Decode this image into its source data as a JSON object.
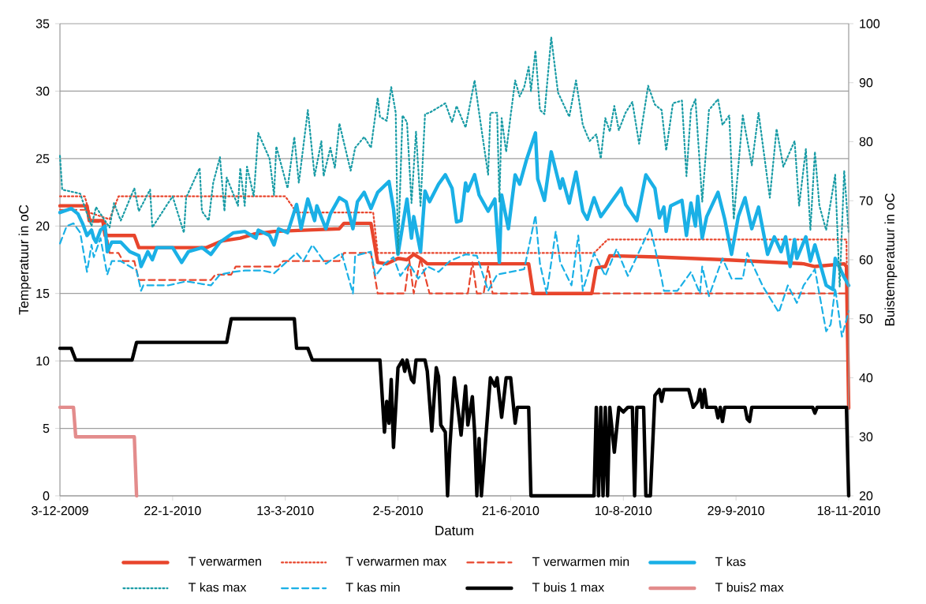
{
  "chart_data": {
    "type": "line",
    "xlabel": "Datum",
    "ylabel": "Temperatuur in oC",
    "y2label": "Buistemperatuur in oC",
    "xlim": [
      "2009-12-03",
      "2010-11-18"
    ],
    "xticks": [
      {
        "value": "2009-12-03",
        "label": "3-12-2009"
      },
      {
        "value": "2010-01-22",
        "label": "22-1-2010"
      },
      {
        "value": "2010-03-13",
        "label": "13-3-2010"
      },
      {
        "value": "2010-05-02",
        "label": "2-5-2010"
      },
      {
        "value": "2010-06-21",
        "label": "21-6-2010"
      },
      {
        "value": "2010-08-10",
        "label": "10-8-2010"
      },
      {
        "value": "2010-09-29",
        "label": "29-9-2010"
      },
      {
        "value": "2010-11-18",
        "label": "18-11-2010"
      }
    ],
    "ylim": [
      0,
      35
    ],
    "yticks": [
      0,
      5,
      10,
      15,
      20,
      25,
      30,
      35
    ],
    "y2lim": [
      20,
      100
    ],
    "y2ticks": [
      20,
      30,
      40,
      50,
      60,
      70,
      80,
      90,
      100
    ],
    "grid": "y",
    "legend": "bottom",
    "series": [
      {
        "name": "T verwarmen",
        "color": "#e8452c",
        "line_style": "solid",
        "x": [
          "2009-12-03",
          "2009-12-15",
          "2009-12-16",
          "2009-12-22",
          "2009-12-23",
          "2010-01-05",
          "2010-01-07",
          "2010-02-06",
          "2010-02-13",
          "2010-02-17",
          "2010-02-21",
          "2010-02-27",
          "2010-03-08",
          "2010-03-23",
          "2010-04-06",
          "2010-04-08",
          "2010-04-20",
          "2010-04-23",
          "2010-04-27",
          "2010-05-02",
          "2010-05-06",
          "2010-05-09",
          "2010-05-12",
          "2010-05-15",
          "2010-06-29",
          "2010-07-01",
          "2010-07-27",
          "2010-07-29",
          "2010-08-02",
          "2010-08-04",
          "2010-08-25",
          "2010-09-24",
          "2010-10-29",
          "2010-11-03",
          "2010-11-16",
          "2010-11-17",
          "2010-11-18"
        ],
        "values": [
          21.5,
          21.5,
          20.4,
          20.4,
          19.3,
          19.3,
          18.4,
          18.4,
          18.9,
          19.0,
          19.1,
          19.4,
          19.6,
          19.7,
          19.8,
          20.2,
          20.2,
          17.3,
          17.2,
          17.6,
          17.5,
          17.9,
          17.6,
          17.2,
          17.2,
          15.0,
          15.0,
          16.9,
          17.0,
          17.8,
          17.7,
          17.5,
          17.2,
          17.0,
          17.2,
          17.0,
          6.5
        ]
      },
      {
        "name": "T verwarmen max",
        "color": "#e8452c",
        "line_style": "dotted",
        "x": [
          "2009-12-03",
          "2009-12-14",
          "2009-12-16",
          "2009-12-25",
          "2009-12-29",
          "2010-03-13",
          "2010-03-18",
          "2010-04-21",
          "2010-04-23",
          "2010-07-28",
          "2010-08-03",
          "2010-11-17",
          "2010-11-18"
        ],
        "values": [
          22.2,
          22.2,
          21.0,
          20.5,
          22.2,
          22.2,
          21.0,
          21.0,
          18.0,
          18.0,
          19.0,
          19.0,
          6.5
        ]
      },
      {
        "name": "T verwarmen min",
        "color": "#e8452c",
        "line_style": "dashed",
        "x": [
          "2009-12-03",
          "2009-12-15",
          "2009-12-17",
          "2009-12-23",
          "2009-12-25",
          "2009-12-29",
          "2009-12-31",
          "2010-01-05",
          "2010-01-07",
          "2010-02-08",
          "2010-02-10",
          "2010-02-17",
          "2010-02-19",
          "2010-03-10",
          "2010-03-12",
          "2010-04-06",
          "2010-04-08",
          "2010-04-20",
          "2010-04-23",
          "2010-05-05",
          "2010-05-07",
          "2010-05-09",
          "2010-05-12",
          "2010-05-16",
          "2010-06-02",
          "2010-06-04",
          "2010-06-06",
          "2010-06-09",
          "2010-06-11",
          "2010-06-13",
          "2010-11-17",
          "2010-11-18"
        ],
        "values": [
          21.2,
          21.2,
          20.3,
          20.3,
          18.0,
          18.0,
          17.4,
          17.4,
          16.0,
          16.0,
          16.4,
          16.4,
          17.0,
          17.0,
          17.4,
          17.4,
          18.0,
          18.0,
          15.0,
          15.0,
          17.5,
          15.0,
          17.6,
          15.0,
          15.0,
          17.3,
          15.0,
          15.0,
          17.0,
          15.0,
          15.0,
          6.5
        ]
      },
      {
        "name": "T kas",
        "color": "#1ab0e6",
        "line_style": "solid",
        "x": [
          "2009-12-03",
          "2009-12-08",
          "2009-12-11",
          "2009-12-13",
          "2009-12-15",
          "2009-12-17",
          "2009-12-18",
          "2009-12-19",
          "2009-12-21",
          "2009-12-23",
          "2009-12-24",
          "2009-12-26",
          "2009-12-30",
          "2010-01-03",
          "2010-01-07",
          "2010-01-08",
          "2010-01-11",
          "2010-01-13",
          "2010-01-15",
          "2010-01-22",
          "2010-01-26",
          "2010-01-29",
          "2010-02-04",
          "2010-02-08",
          "2010-02-12",
          "2010-02-18",
          "2010-02-23",
          "2010-02-28",
          "2010-03-01",
          "2010-03-06",
          "2010-03-08",
          "2010-03-10",
          "2010-03-14",
          "2010-03-18",
          "2010-03-20",
          "2010-03-23",
          "2010-03-26",
          "2010-03-27",
          "2010-03-31",
          "2010-04-02",
          "2010-04-06",
          "2010-04-09",
          "2010-04-12",
          "2010-04-14",
          "2010-04-17",
          "2010-04-20",
          "2010-04-23",
          "2010-04-28",
          "2010-04-30",
          "2010-05-02",
          "2010-05-06",
          "2010-05-08",
          "2010-05-09",
          "2010-05-12",
          "2010-05-14",
          "2010-05-16",
          "2010-05-20",
          "2010-05-23",
          "2010-05-26",
          "2010-05-28",
          "2010-05-30",
          "2010-06-01",
          "2010-06-02",
          "2010-06-05",
          "2010-06-07",
          "2010-06-11",
          "2010-06-14",
          "2010-06-16",
          "2010-06-17",
          "2010-06-20",
          "2010-06-23",
          "2010-06-25",
          "2010-06-28",
          "2010-07-02",
          "2010-07-03",
          "2010-07-06",
          "2010-07-09",
          "2010-07-13",
          "2010-07-14",
          "2010-07-17",
          "2010-07-20",
          "2010-07-23",
          "2010-07-25",
          "2010-07-28",
          "2010-07-31",
          "2010-08-06",
          "2010-08-09",
          "2010-08-11",
          "2010-08-16",
          "2010-08-20",
          "2010-08-24",
          "2010-08-26",
          "2010-08-28",
          "2010-08-29",
          "2010-08-31",
          "2010-09-05",
          "2010-09-07",
          "2010-09-09",
          "2010-09-11",
          "2010-09-12",
          "2010-09-14",
          "2010-09-16",
          "2010-09-21",
          "2010-09-24",
          "2010-09-27",
          "2010-09-30",
          "2010-10-03",
          "2010-10-06",
          "2010-10-09",
          "2010-10-13",
          "2010-10-16",
          "2010-10-19",
          "2010-10-21",
          "2010-10-23",
          "2010-10-25",
          "2010-10-26",
          "2010-10-30",
          "2010-11-01",
          "2010-11-03",
          "2010-11-08",
          "2010-11-11",
          "2010-11-12",
          "2010-11-16",
          "2010-11-18"
        ],
        "values": [
          21.0,
          21.3,
          20.9,
          20.2,
          19.3,
          19.7,
          19.1,
          18.8,
          19.7,
          20.0,
          18.1,
          18.8,
          18.8,
          18.1,
          17.8,
          17.0,
          18.1,
          17.5,
          18.4,
          18.4,
          17.3,
          18.1,
          18.4,
          17.9,
          18.8,
          19.5,
          19.6,
          19.1,
          19.7,
          19.3,
          18.6,
          19.8,
          19.5,
          21.6,
          19.8,
          22.0,
          20.4,
          21.5,
          19.8,
          20.9,
          22.1,
          21.8,
          19.8,
          21.8,
          22.5,
          21.3,
          22.5,
          23.3,
          21.3,
          17.9,
          22.0,
          19.1,
          20.7,
          18.1,
          22.6,
          21.8,
          23.1,
          23.8,
          22.8,
          20.3,
          20.4,
          23.2,
          22.6,
          23.8,
          22.3,
          21.1,
          22.0,
          17.3,
          22.3,
          19.8,
          23.8,
          23.1,
          24.9,
          26.9,
          23.5,
          21.9,
          25.5,
          22.8,
          23.5,
          21.7,
          24.0,
          21.1,
          20.5,
          22.1,
          20.7,
          22.1,
          22.8,
          21.6,
          20.4,
          23.8,
          22.8,
          20.6,
          21.4,
          19.6,
          21.5,
          21.9,
          19.3,
          21.7,
          20.0,
          22.2,
          19.1,
          20.7,
          22.5,
          20.5,
          17.9,
          20.7,
          22.1,
          19.8,
          21.4,
          17.9,
          19.2,
          18.1,
          19.2,
          17.0,
          19.0,
          17.6,
          19.2,
          17.4,
          18.6,
          15.6,
          15.3,
          17.6,
          16.2,
          15.6
        ]
      },
      {
        "name": "T kas max",
        "color": "#1a9ca6",
        "line_style": "dotted",
        "x": [
          "2009-12-03",
          "2009-12-04",
          "2009-12-12",
          "2009-12-14",
          "2009-12-17",
          "2009-12-19",
          "2009-12-25",
          "2009-12-27",
          "2009-12-30",
          "2010-01-05",
          "2010-01-07",
          "2010-01-12",
          "2010-01-13",
          "2010-01-20",
          "2010-01-22",
          "2010-01-27",
          "2010-01-28",
          "2010-02-03",
          "2010-02-04",
          "2010-02-07",
          "2010-02-09",
          "2010-02-12",
          "2010-02-14",
          "2010-02-15",
          "2010-02-20",
          "2010-02-21",
          "2010-02-23",
          "2010-02-24",
          "2010-02-27",
          "2010-03-01",
          "2010-03-06",
          "2010-03-08",
          "2010-03-09",
          "2010-03-14",
          "2010-03-17",
          "2010-03-19",
          "2010-03-23",
          "2010-03-26",
          "2010-03-29",
          "2010-03-30",
          "2010-04-02",
          "2010-04-04",
          "2010-04-06",
          "2010-04-11",
          "2010-04-13",
          "2010-04-17",
          "2010-04-20",
          "2010-04-23",
          "2010-04-24",
          "2010-04-27",
          "2010-04-29",
          "2010-05-01",
          "2010-05-02",
          "2010-05-04",
          "2010-05-06",
          "2010-05-08",
          "2010-05-10",
          "2010-05-12",
          "2010-05-14",
          "2010-05-16",
          "2010-05-23",
          "2010-05-26",
          "2010-05-28",
          "2010-06-01",
          "2010-06-05",
          "2010-06-07",
          "2010-06-11",
          "2010-06-12",
          "2010-06-15",
          "2010-06-16",
          "2010-06-17",
          "2010-06-19",
          "2010-06-21",
          "2010-06-23",
          "2010-06-25",
          "2010-06-27",
          "2010-06-29",
          "2010-06-30",
          "2010-07-02",
          "2010-07-04",
          "2010-07-06",
          "2010-07-09",
          "2010-07-12",
          "2010-07-17",
          "2010-07-20",
          "2010-07-23",
          "2010-07-26",
          "2010-07-29",
          "2010-07-31",
          "2010-08-02",
          "2010-08-04",
          "2010-08-06",
          "2010-08-08",
          "2010-08-11",
          "2010-08-14",
          "2010-08-17",
          "2010-08-21",
          "2010-08-24",
          "2010-08-27",
          "2010-08-29",
          "2010-09-01",
          "2010-09-05",
          "2010-09-07",
          "2010-09-09",
          "2010-09-11",
          "2010-09-14",
          "2010-09-17",
          "2010-09-21",
          "2010-09-23",
          "2010-09-26",
          "2010-09-28",
          "2010-10-02",
          "2010-10-06",
          "2010-10-09",
          "2010-10-14",
          "2010-10-17",
          "2010-10-20",
          "2010-10-25",
          "2010-10-27",
          "2010-10-30",
          "2010-11-01",
          "2010-11-03",
          "2010-11-05",
          "2010-11-08",
          "2010-11-12",
          "2010-11-14",
          "2010-11-16",
          "2010-11-18"
        ],
        "values": [
          25.2,
          22.7,
          22.4,
          21.4,
          20.0,
          21.4,
          19.9,
          21.7,
          20.4,
          22.8,
          21.1,
          22.7,
          19.9,
          21.7,
          22.2,
          19.5,
          22.1,
          24.3,
          21.1,
          20.4,
          23.2,
          25.1,
          21.1,
          23.6,
          21.5,
          24.3,
          21.5,
          24.4,
          22.2,
          26.9,
          25.0,
          22.3,
          25.9,
          22.8,
          26.6,
          23.2,
          28.6,
          23.7,
          26.3,
          23.7,
          25.8,
          24.3,
          27.6,
          24.1,
          25.8,
          26.6,
          25.8,
          29.5,
          28.1,
          27.8,
          30.3,
          28.4,
          17.9,
          28.2,
          27.7,
          21.7,
          27.0,
          21.5,
          28.3,
          28.4,
          29.1,
          27.7,
          28.9,
          27.3,
          30.8,
          28.4,
          23.8,
          28.4,
          28.4,
          21.8,
          28.0,
          25.5,
          28.2,
          30.8,
          29.6,
          30.3,
          31.8,
          30.0,
          33.0,
          28.6,
          28.3,
          34.0,
          29.9,
          28.1,
          30.8,
          27.5,
          26.3,
          26.8,
          25.0,
          28.0,
          27.0,
          28.9,
          27.1,
          28.4,
          29.2,
          26.1,
          30.4,
          29.0,
          28.6,
          25.6,
          29.1,
          29.3,
          23.7,
          28.6,
          29.4,
          21.8,
          28.6,
          29.4,
          27.5,
          28.2,
          20.5,
          28.2,
          24.5,
          28.4,
          22.1,
          27.2,
          24.4,
          26.3,
          21.5,
          25.7,
          19.7,
          25.5,
          21.5,
          19.7,
          23.8,
          15.5,
          24.1,
          19.5
        ]
      },
      {
        "name": "T kas min",
        "color": "#1ab0e6",
        "line_style": "dashed",
        "x": [
          "2009-12-03",
          "2009-12-06",
          "2009-12-09",
          "2009-12-12",
          "2009-12-15",
          "2009-12-17",
          "2009-12-18",
          "2009-12-21",
          "2009-12-24",
          "2009-12-26",
          "2009-12-30",
          "2010-01-06",
          "2010-01-08",
          "2010-01-09",
          "2010-01-20",
          "2010-01-28",
          "2010-02-08",
          "2010-02-12",
          "2010-02-18",
          "2010-02-23",
          "2010-03-03",
          "2010-03-08",
          "2010-03-12",
          "2010-03-18",
          "2010-03-21",
          "2010-03-25",
          "2010-03-31",
          "2010-04-07",
          "2010-04-12",
          "2010-04-13",
          "2010-04-20",
          "2010-04-22",
          "2010-04-26",
          "2010-04-30",
          "2010-05-03",
          "2010-05-07",
          "2010-05-11",
          "2010-05-15",
          "2010-05-20",
          "2010-05-25",
          "2010-06-01",
          "2010-06-06",
          "2010-06-11",
          "2010-06-15",
          "2010-06-21",
          "2010-06-27",
          "2010-07-02",
          "2010-07-04",
          "2010-07-07",
          "2010-07-11",
          "2010-07-13",
          "2010-07-18",
          "2010-07-21",
          "2010-07-23",
          "2010-07-28",
          "2010-08-02",
          "2010-08-07",
          "2010-08-12",
          "2010-08-22",
          "2010-08-27",
          "2010-08-28",
          "2010-09-03",
          "2010-09-09",
          "2010-09-13",
          "2010-09-14",
          "2010-09-17",
          "2010-09-23",
          "2010-09-27",
          "2010-10-02",
          "2010-10-04",
          "2010-10-11",
          "2010-10-18",
          "2010-10-22",
          "2010-10-26",
          "2010-10-29",
          "2010-11-03",
          "2010-11-08",
          "2010-11-10",
          "2010-11-12",
          "2010-11-15",
          "2010-11-18"
        ],
        "values": [
          18.7,
          20.0,
          20.2,
          19.5,
          16.6,
          18.6,
          17.7,
          19.1,
          16.4,
          17.4,
          17.4,
          16.7,
          15.2,
          15.6,
          15.6,
          15.9,
          15.6,
          16.4,
          16.6,
          16.7,
          16.7,
          16.5,
          17.1,
          18.0,
          17.4,
          18.6,
          17.2,
          18.0,
          15.0,
          17.8,
          18.1,
          16.3,
          17.2,
          17.7,
          16.3,
          17.2,
          16.1,
          17.0,
          16.6,
          17.4,
          17.9,
          17.8,
          15.2,
          16.4,
          16.6,
          16.8,
          20.8,
          17.2,
          15.0,
          19.6,
          17.3,
          15.6,
          19.3,
          15.2,
          18.0,
          16.3,
          18.3,
          16.3,
          19.9,
          16.1,
          15.2,
          15.2,
          16.6,
          15.0,
          17.0,
          14.8,
          17.6,
          16.1,
          16.1,
          18.0,
          15.5,
          13.6,
          15.6,
          14.3,
          15.6,
          16.8,
          12.2,
          12.7,
          15.4,
          11.8,
          13.7
        ]
      },
      {
        "name": "T buis 1 max",
        "color": "#000000",
        "line_style": "solid",
        "axis": "y2",
        "x": [
          "2009-12-03",
          "2009-12-08",
          "2009-12-10",
          "2010-01-04",
          "2010-01-06",
          "2010-02-15",
          "2010-02-17",
          "2010-03-17",
          "2010-03-18",
          "2010-03-23",
          "2010-03-25",
          "2010-04-24",
          "2010-04-26",
          "2010-04-27",
          "2010-04-28",
          "2010-04-29",
          "2010-04-30",
          "2010-05-02",
          "2010-05-04",
          "2010-05-05",
          "2010-05-06",
          "2010-05-08",
          "2010-05-09",
          "2010-05-10",
          "2010-05-14",
          "2010-05-15",
          "2010-05-17",
          "2010-05-19",
          "2010-05-20",
          "2010-05-21",
          "2010-05-23",
          "2010-05-24",
          "2010-05-25",
          "2010-05-27",
          "2010-05-30",
          "2010-06-01",
          "2010-06-02",
          "2010-06-04",
          "2010-06-05",
          "2010-06-06",
          "2010-06-07",
          "2010-06-08",
          "2010-06-12",
          "2010-06-14",
          "2010-06-15",
          "2010-06-17",
          "2010-06-19",
          "2010-06-21",
          "2010-06-23",
          "2010-06-24",
          "2010-06-29",
          "2010-06-30",
          "2010-07-28",
          "2010-07-29",
          "2010-07-30",
          "2010-07-31",
          "2010-08-01",
          "2010-08-02",
          "2010-08-03",
          "2010-08-04",
          "2010-08-06",
          "2010-08-08",
          "2010-08-10",
          "2010-08-12",
          "2010-08-14",
          "2010-08-15",
          "2010-08-16",
          "2010-08-19",
          "2010-08-20",
          "2010-08-22",
          "2010-08-24",
          "2010-08-26",
          "2010-08-27",
          "2010-08-28",
          "2010-09-08",
          "2010-09-10",
          "2010-09-12",
          "2010-09-13",
          "2010-09-14",
          "2010-09-15",
          "2010-09-16",
          "2010-09-20",
          "2010-09-21",
          "2010-09-22",
          "2010-09-23",
          "2010-09-24",
          "2010-10-03",
          "2010-10-04",
          "2010-10-05",
          "2010-10-06",
          "2010-11-02",
          "2010-11-03",
          "2010-11-04",
          "2010-11-17",
          "2010-11-18"
        ],
        "values": [
          45,
          45,
          43,
          43,
          46,
          46,
          50,
          50,
          45,
          45,
          43,
          43,
          30.8,
          36.0,
          32.3,
          39.7,
          28.2,
          41.7,
          43,
          41.1,
          43,
          39.7,
          39.2,
          43,
          43,
          41.1,
          31,
          41.7,
          40.2,
          32,
          30.8,
          20,
          28.2,
          40,
          30.3,
          38.6,
          32,
          36.8,
          30.8,
          20,
          29.7,
          20,
          40,
          38.6,
          40,
          33.3,
          40,
          40,
          32.3,
          35,
          35,
          20,
          20,
          35,
          20,
          35,
          20,
          35,
          20,
          35,
          27.4,
          35,
          34.2,
          35,
          35,
          20,
          35,
          35,
          20,
          20,
          37,
          38,
          36,
          38,
          38,
          35,
          36,
          38,
          35,
          38,
          35,
          35,
          33.2,
          35,
          32.6,
          35,
          35,
          33,
          32.6,
          35,
          35,
          34,
          35,
          35,
          20
        ]
      },
      {
        "name": "T buis2 max",
        "color": "#e38c8c",
        "line_style": "solid",
        "axis": "y2",
        "x": [
          "2009-12-03",
          "2009-12-09",
          "2009-12-10",
          "2010-01-05",
          "2010-01-06"
        ],
        "values": [
          35,
          35,
          30,
          30,
          20
        ]
      }
    ]
  }
}
